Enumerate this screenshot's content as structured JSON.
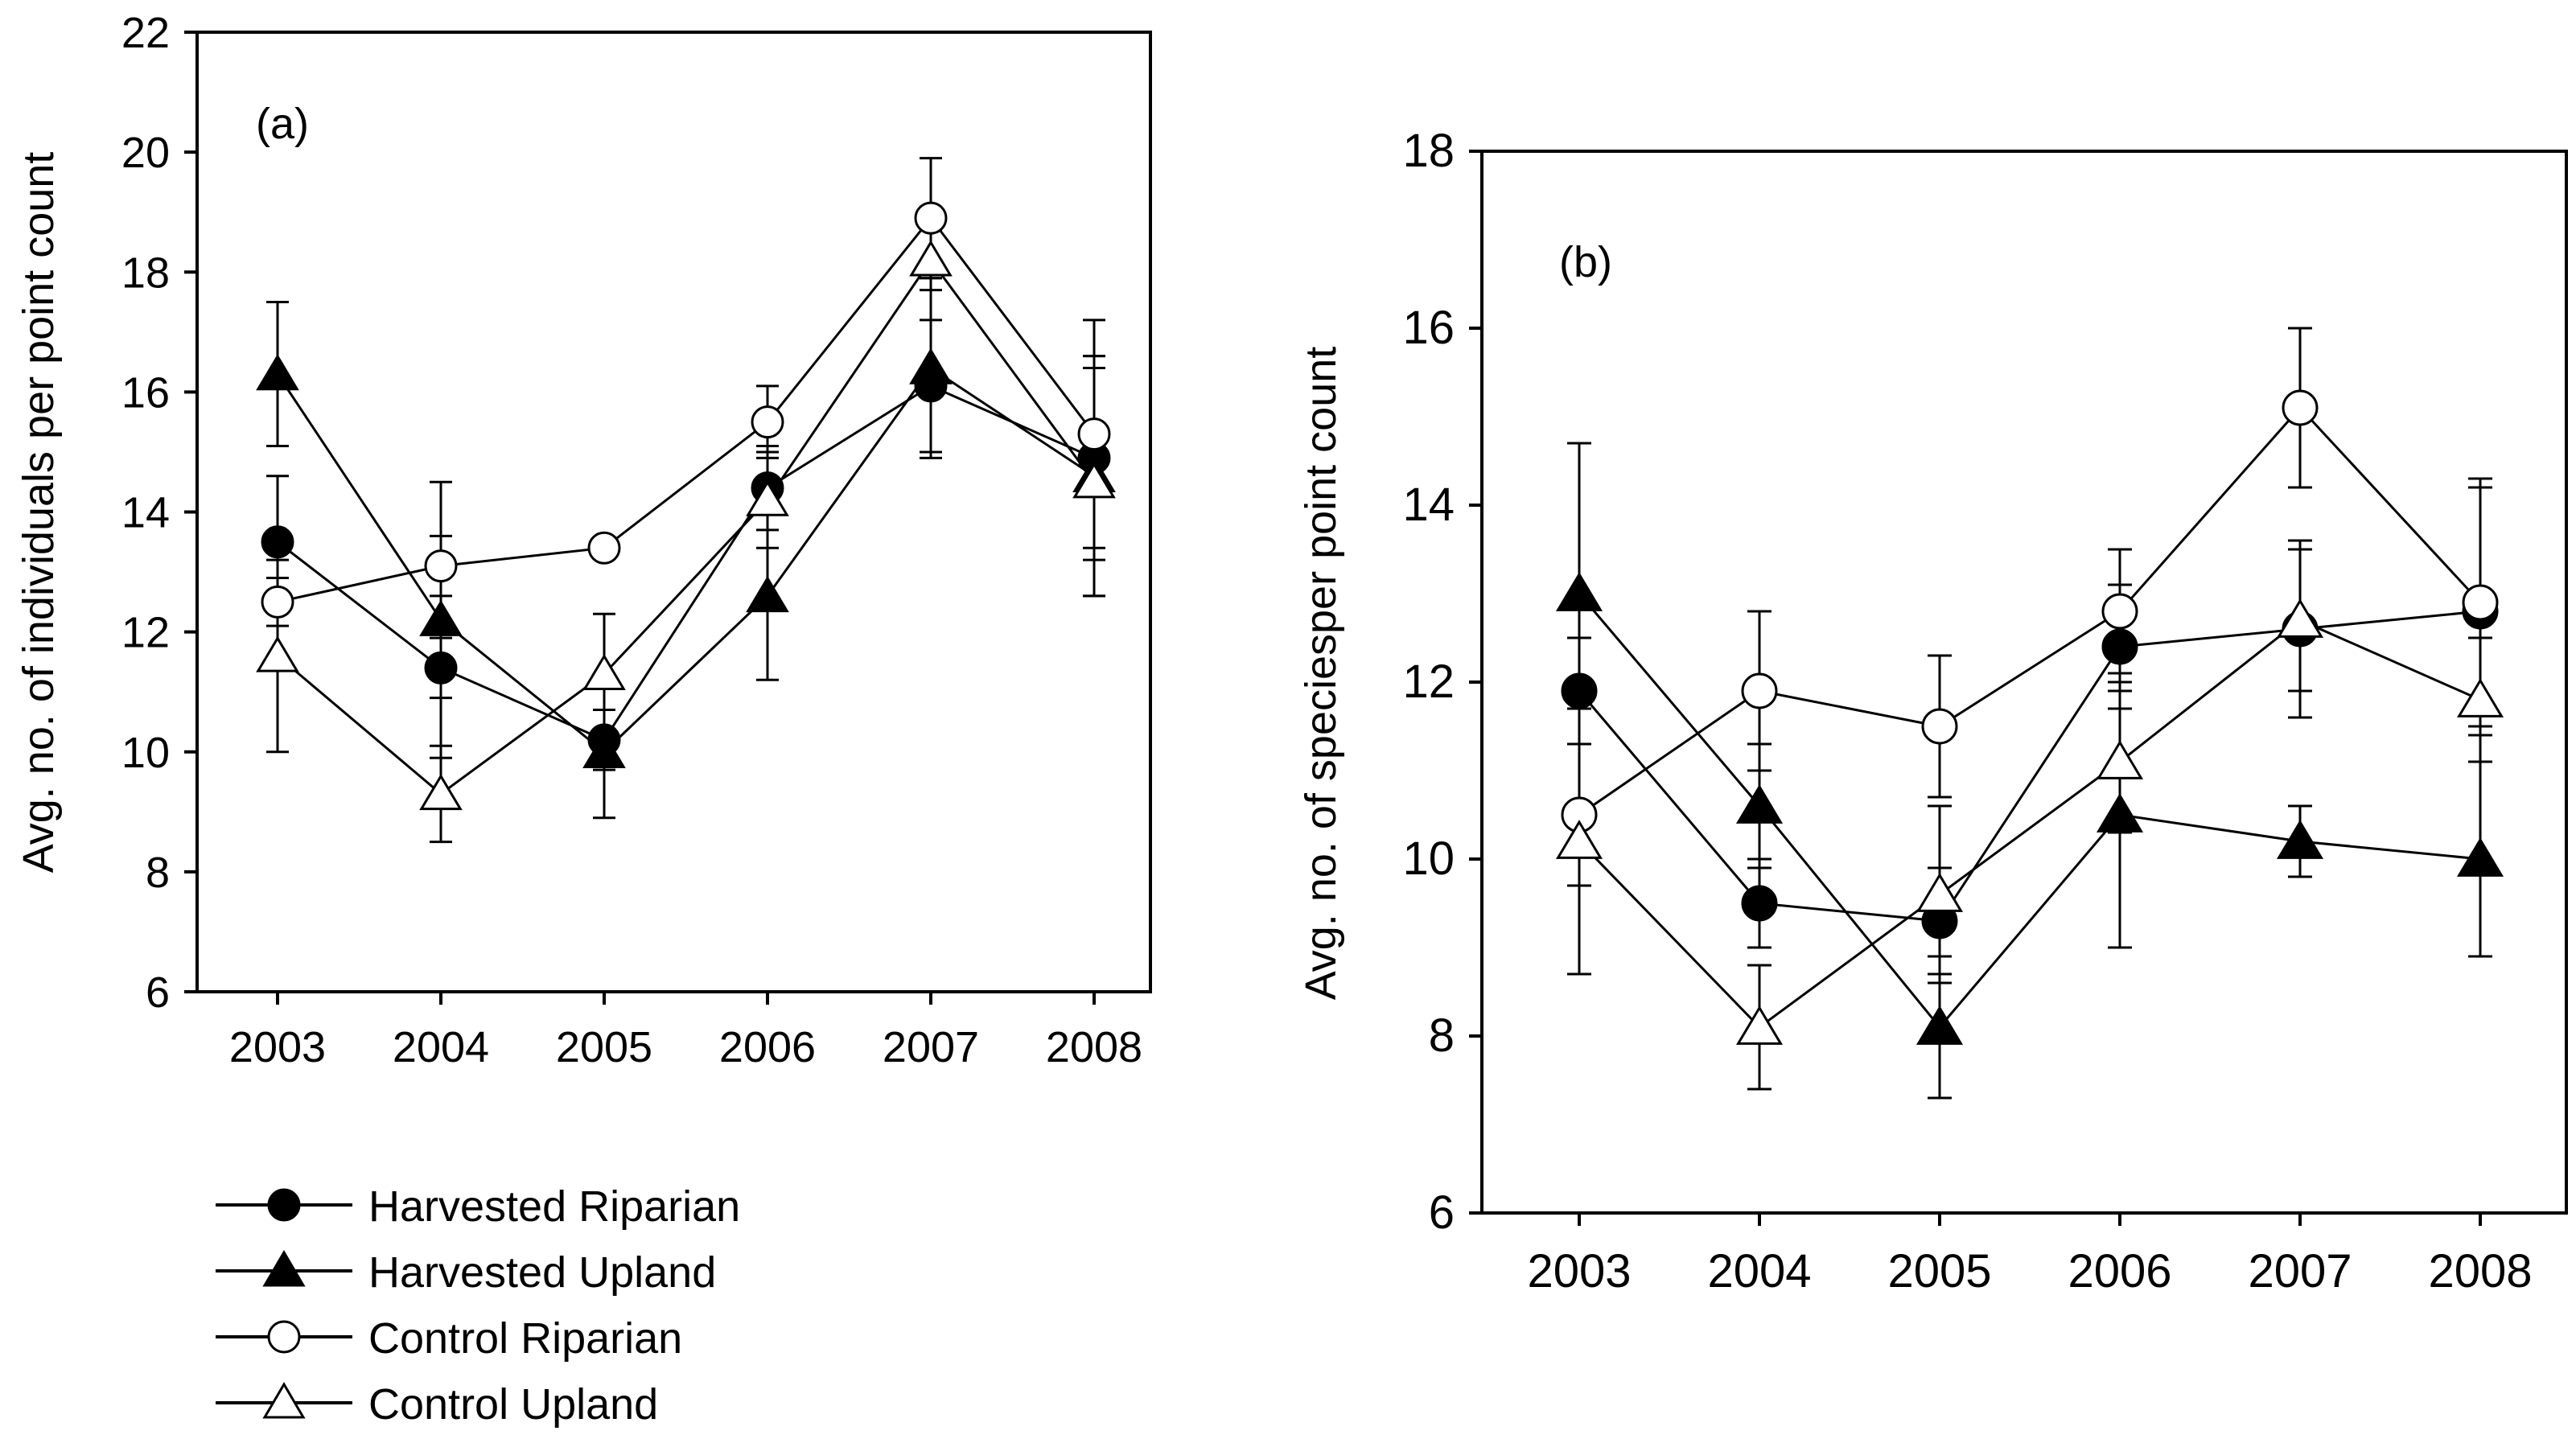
{
  "legend": [
    {
      "label": "Harvested Riparian",
      "marker": "circle",
      "fill": "#000000"
    },
    {
      "label": "Harvested Upland",
      "marker": "triangle",
      "fill": "#000000"
    },
    {
      "label": "Control Riparian",
      "marker": "circle",
      "fill": "#ffffff"
    },
    {
      "label": "Control Upland",
      "marker": "triangle",
      "fill": "#ffffff"
    }
  ],
  "chart_data": [
    {
      "type": "line",
      "title": "(a)",
      "xlabel": "",
      "ylabel": "Avg. no. of individuals per point count",
      "categories": [
        "2003",
        "2004",
        "2005",
        "2006",
        "2007",
        "2008"
      ],
      "ylim": [
        6,
        22
      ],
      "yticks": [
        6,
        8,
        10,
        12,
        14,
        16,
        18,
        20,
        22
      ],
      "series": [
        {
          "name": "Harvested Riparian",
          "values": [
            13.5,
            11.4,
            10.2,
            14.4,
            16.1,
            14.9
          ],
          "errors": [
            1.1,
            0.5,
            0.5,
            0.7,
            1.1,
            1.7
          ]
        },
        {
          "name": "Harvested Upland",
          "values": [
            16.3,
            12.2,
            10.0,
            12.6,
            16.4,
            14.6
          ],
          "errors": [
            1.2,
            2.3,
            1.1,
            1.4,
            1.5,
            2.0
          ]
        },
        {
          "name": "Control Riparian",
          "values": [
            12.5,
            13.1,
            13.4,
            15.5,
            18.9,
            15.3
          ],
          "errors": [
            0.4,
            0.5,
            0.0,
            0.6,
            1.0,
            1.9
          ]
        },
        {
          "name": "Control Upland",
          "values": [
            11.6,
            9.3,
            11.3,
            14.2,
            18.2,
            14.5
          ],
          "errors": [
            1.6,
            0.8,
            1.0,
            0.8,
            0.5,
            1.9
          ]
        }
      ]
    },
    {
      "type": "line",
      "title": "(b)",
      "xlabel": "",
      "ylabel": "Avg. no. of speciesper point count",
      "categories": [
        "2003",
        "2004",
        "2005",
        "2006",
        "2007",
        "2008"
      ],
      "ylim": [
        6,
        18
      ],
      "yticks": [
        6,
        8,
        10,
        12,
        14,
        16,
        18
      ],
      "series": [
        {
          "name": "Harvested Riparian",
          "values": [
            11.9,
            9.5,
            9.3,
            12.4,
            12.6,
            12.8
          ],
          "errors": [
            0.6,
            0.5,
            0.6,
            0.7,
            1.0,
            1.4
          ]
        },
        {
          "name": "Harvested Upland",
          "values": [
            13.0,
            10.6,
            8.1,
            10.5,
            10.2,
            10.0
          ],
          "errors": [
            1.7,
            0.7,
            0.8,
            1.5,
            0.4,
            1.1
          ]
        },
        {
          "name": "Control Riparian",
          "values": [
            10.5,
            11.9,
            11.5,
            12.8,
            15.1,
            12.9
          ],
          "errors": [
            0.8,
            0.9,
            0.8,
            0.7,
            0.9,
            1.4
          ]
        },
        {
          "name": "Control Upland",
          "values": [
            10.2,
            8.1,
            9.6,
            11.1,
            12.7,
            11.8
          ],
          "errors": [
            1.5,
            0.7,
            1.0,
            0.8,
            0.8,
            0.7
          ]
        }
      ]
    }
  ]
}
